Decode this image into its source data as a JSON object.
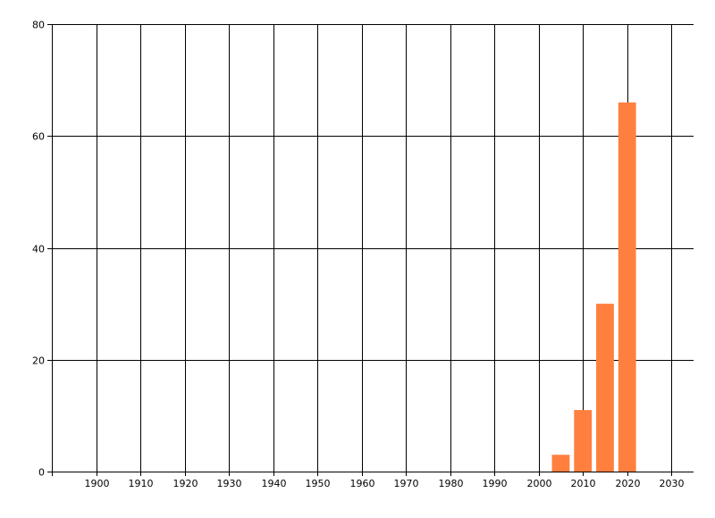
{
  "chart_data": {
    "type": "bar",
    "title": "",
    "xlabel": "",
    "ylabel": "",
    "x": [
      2005,
      2010,
      2015,
      2020
    ],
    "values": [
      3,
      11,
      30,
      66
    ],
    "xlim": [
      1890,
      2035
    ],
    "ylim": [
      0,
      80
    ],
    "x_ticks": [
      1900,
      1910,
      1920,
      1930,
      1940,
      1950,
      1960,
      1970,
      1980,
      1990,
      2000,
      2010,
      2020,
      2030
    ],
    "y_ticks": [
      0,
      20,
      40,
      60,
      80
    ],
    "grid": true,
    "legend": "none",
    "bar_color": "#ff7f3f",
    "grid_color": "#000000"
  }
}
